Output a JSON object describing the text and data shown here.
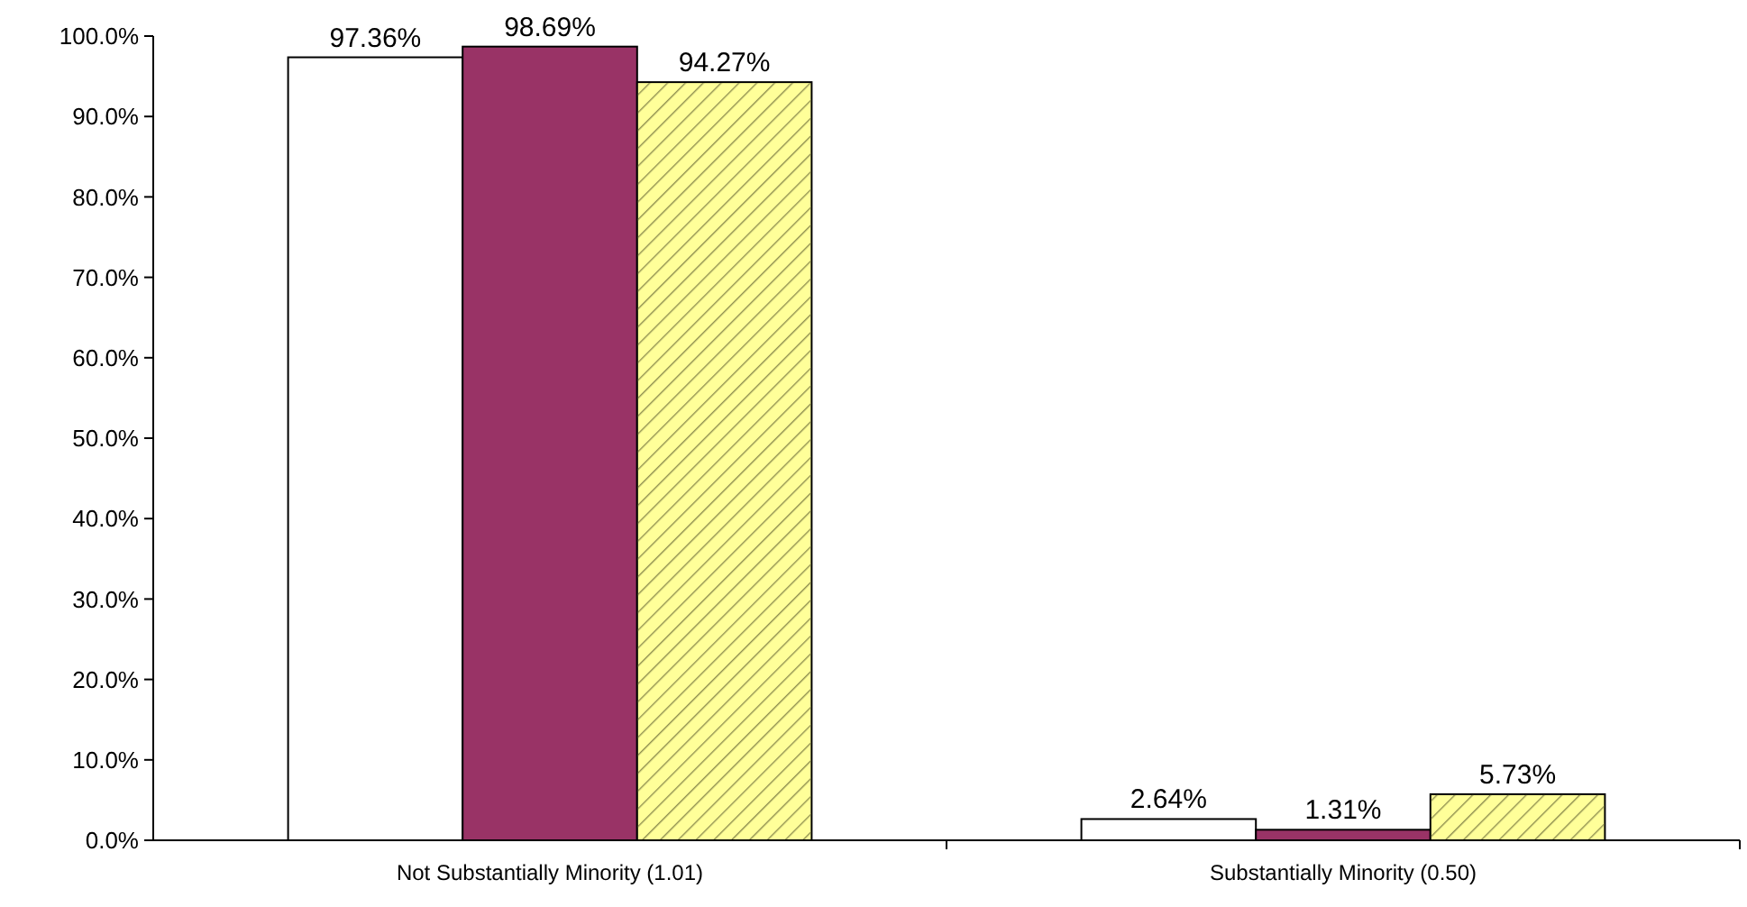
{
  "chart_data": {
    "type": "bar",
    "categories": [
      "Not Substantially Minority (1.01)",
      "Substantially Minority (0.50)"
    ],
    "series": [
      {
        "color": "#ffffff",
        "values": [
          97.36,
          2.64
        ],
        "value_labels": [
          "97.36%",
          "2.64%"
        ]
      },
      {
        "color": "#993366",
        "values": [
          98.69,
          1.31
        ],
        "value_labels": [
          "98.69%",
          "1.31%"
        ]
      },
      {
        "color": "#ffff99",
        "values": [
          94.27,
          5.73
        ],
        "value_labels": [
          "94.27%",
          "5.73%"
        ]
      }
    ],
    "ylim": [
      0,
      100
    ],
    "yticks": [
      {
        "value": 0,
        "label": "0.0%"
      },
      {
        "value": 10,
        "label": "10.0%"
      },
      {
        "value": 20,
        "label": "20.0%"
      },
      {
        "value": 30,
        "label": "30.0%"
      },
      {
        "value": 40,
        "label": "40.0%"
      },
      {
        "value": 50,
        "label": "50.0%"
      },
      {
        "value": 60,
        "label": "60.0%"
      },
      {
        "value": 70,
        "label": "70.0%"
      },
      {
        "value": 80,
        "label": "80.0%"
      },
      {
        "value": 90,
        "label": "90.0%"
      },
      {
        "value": 100,
        "label": "100.0%"
      }
    ],
    "grid": false
  }
}
